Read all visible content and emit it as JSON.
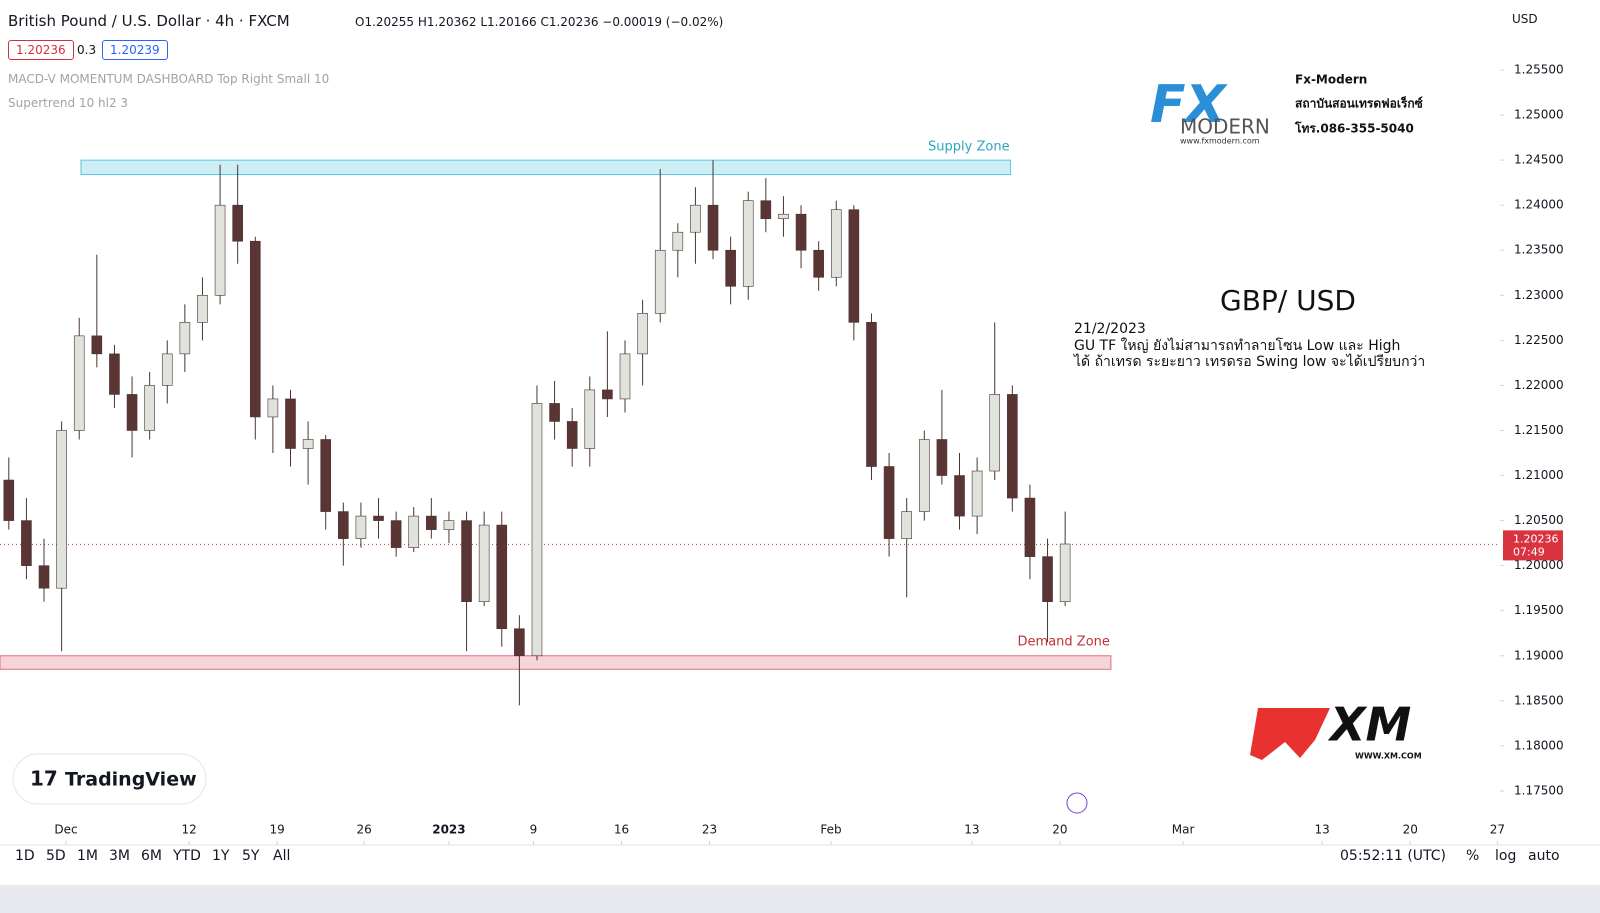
{
  "header": {
    "title": "British Pound / U.S. Dollar · 4h · FXCM",
    "ohlc": "O1.20255 H1.20362 L1.20166 C1.20236 −0.00019 (−0.02%)",
    "sell": "1.20236",
    "spread": "0.3",
    "buy": "1.20239",
    "indicators": [
      "MACD-V MOMENTUM DASHBOARD Top Right Small 10",
      "Supertrend 10 hl2 3"
    ],
    "currency": "USD"
  },
  "chart_data": {
    "type": "candlestick",
    "open": [
      1.2095,
      1.205,
      1.2,
      1.1975,
      1.215,
      1.2255,
      1.2235,
      1.219,
      1.215,
      1.22,
      1.2235,
      1.227,
      1.23,
      1.24,
      1.236,
      1.2165,
      1.2185,
      1.213,
      1.214,
      1.206,
      1.203,
      1.2055,
      1.205,
      1.202,
      1.2055,
      1.204,
      1.205,
      1.196,
      1.2045,
      1.193,
      1.19,
      1.218,
      1.216,
      1.213,
      1.2195,
      1.2185,
      1.2235,
      1.228,
      1.235,
      1.237,
      1.24,
      1.235,
      1.231,
      1.2405,
      1.2385,
      1.239,
      1.235,
      1.232,
      1.2395,
      1.227,
      1.211,
      1.203,
      1.206,
      1.214,
      1.21,
      1.2055,
      1.2105,
      1.219,
      1.2075,
      1.201,
      1.196
    ],
    "high": [
      1.212,
      1.2075,
      1.203,
      1.216,
      1.2275,
      1.2345,
      1.2245,
      1.221,
      1.2215,
      1.225,
      1.229,
      1.232,
      1.2445,
      1.2445,
      1.2365,
      1.22,
      1.2195,
      1.216,
      1.2145,
      1.207,
      1.207,
      1.2075,
      1.206,
      1.2065,
      1.2075,
      1.206,
      1.206,
      1.206,
      1.206,
      1.1945,
      1.22,
      1.2205,
      1.2175,
      1.221,
      1.226,
      1.225,
      1.2295,
      1.244,
      1.238,
      1.242,
      1.245,
      1.2365,
      1.2415,
      1.243,
      1.241,
      1.24,
      1.236,
      1.2405,
      1.24,
      1.228,
      1.2125,
      1.2075,
      1.215,
      1.2195,
      1.2125,
      1.212,
      1.227,
      1.22,
      1.209,
      1.203,
      1.206
    ],
    "low": [
      1.204,
      1.1985,
      1.196,
      1.1905,
      1.214,
      1.222,
      1.2175,
      1.212,
      1.214,
      1.218,
      1.2215,
      1.225,
      1.229,
      1.2335,
      1.214,
      1.2125,
      1.211,
      1.209,
      1.204,
      1.2,
      1.202,
      1.203,
      1.201,
      1.2015,
      1.203,
      1.2025,
      1.1905,
      1.1955,
      1.191,
      1.1845,
      1.1895,
      1.214,
      1.211,
      1.211,
      1.2165,
      1.217,
      1.22,
      1.227,
      1.232,
      1.2335,
      1.234,
      1.229,
      1.2295,
      1.237,
      1.2365,
      1.233,
      1.2305,
      1.231,
      1.225,
      1.2095,
      1.201,
      1.1965,
      1.205,
      1.209,
      1.204,
      1.2035,
      1.2095,
      1.206,
      1.1985,
      1.1915,
      1.1955
    ],
    "close": [
      1.205,
      1.2,
      1.1975,
      1.215,
      1.2255,
      1.2235,
      1.219,
      1.215,
      1.22,
      1.2235,
      1.227,
      1.23,
      1.24,
      1.236,
      1.2165,
      1.2185,
      1.213,
      1.214,
      1.206,
      1.203,
      1.2055,
      1.205,
      1.202,
      1.2055,
      1.204,
      1.205,
      1.196,
      1.2045,
      1.193,
      1.19,
      1.218,
      1.216,
      1.213,
      1.2195,
      1.2185,
      1.2235,
      1.228,
      1.235,
      1.237,
      1.24,
      1.235,
      1.231,
      1.2405,
      1.2385,
      1.239,
      1.235,
      1.232,
      1.2395,
      1.227,
      1.211,
      1.203,
      1.206,
      1.214,
      1.21,
      1.2055,
      1.2105,
      1.219,
      1.2075,
      1.201,
      1.196,
      1.2024
    ],
    "up_color": "#dfe3dc",
    "down_color": "#5b3434",
    "xlim": [
      0,
      85.2
    ],
    "xticks": [
      {
        "value": 3.75,
        "label": "Dec"
      },
      {
        "value": 10.74,
        "label": "12"
      },
      {
        "value": 15.74,
        "label": "19"
      },
      {
        "value": 20.68,
        "label": "26"
      },
      {
        "value": 25.5,
        "label": "2023"
      },
      {
        "value": 30.3,
        "label": "9"
      },
      {
        "value": 35.3,
        "label": "16"
      },
      {
        "value": 40.3,
        "label": "23"
      },
      {
        "value": 47.2,
        "label": "Feb"
      },
      {
        "value": 55.2,
        "label": "13"
      },
      {
        "value": 60.2,
        "label": "20"
      },
      {
        "value": 67.2,
        "label": "Mar"
      },
      {
        "value": 75.1,
        "label": "13"
      },
      {
        "value": 80.1,
        "label": "20"
      },
      {
        "value": 85.05,
        "label": "27"
      }
    ],
    "ylim": [
      1.169,
      1.26277
    ],
    "yticks": [
      {
        "value": 1.175,
        "label": "1.17500"
      },
      {
        "value": 1.18,
        "label": "1.18000"
      },
      {
        "value": 1.185,
        "label": "1.18500"
      },
      {
        "value": 1.19,
        "label": "1.19000"
      },
      {
        "value": 1.195,
        "label": "1.19500"
      },
      {
        "value": 1.2,
        "label": "1.20000"
      },
      {
        "value": 1.205,
        "label": "1.20500"
      },
      {
        "value": 1.21,
        "label": "1.21000"
      },
      {
        "value": 1.215,
        "label": "1.21500"
      },
      {
        "value": 1.22,
        "label": "1.22000"
      },
      {
        "value": 1.225,
        "label": "1.22500"
      },
      {
        "value": 1.23,
        "label": "1.23000"
      },
      {
        "value": 1.235,
        "label": "1.23500"
      },
      {
        "value": 1.24,
        "label": "1.24000"
      },
      {
        "value": 1.245,
        "label": "1.24500"
      },
      {
        "value": 1.25,
        "label": "1.25000"
      },
      {
        "value": 1.255,
        "label": "1.25500"
      }
    ],
    "last_price": {
      "value": 1.20236,
      "label": "1.20236"
    },
    "countdown": "07:49",
    "zones": [
      {
        "label": "Supply Zone",
        "range": [
          1.2434,
          1.245
        ],
        "x_range": [
          4.6,
          57.4
        ],
        "color": "#5bc8dc"
      },
      {
        "label": "Demand Zone",
        "range": [
          1.1885,
          1.19
        ],
        "x_range": [
          0,
          63.1
        ],
        "color": "#e0707a"
      }
    ],
    "annotation": {
      "heading": "GBP/ USD",
      "date": "21/2/2023",
      "lines": [
        "GU TF ใหญ่ ยังไม่สามารถทำลายโซน Low และ High",
        "ได้ ถ้าเทรด ระยะยาว เทรดรอ Swing low จะได้เปรียบกว่า"
      ]
    }
  },
  "logos": {
    "fx": "FX",
    "modern": "MODERN",
    "fx_url": "www.fxmodern.com",
    "brand": "Fx-Modern",
    "school": "สถาบันสอนเทรดฟอเร็กซ์",
    "phone": "โทร.086-355-5040",
    "xm": "XM",
    "xm_url": "WWW.XM.COM",
    "tradingview": "TradingView"
  },
  "toolbar": {
    "ranges": [
      "1D",
      "5D",
      "1M",
      "3M",
      "6M",
      "YTD",
      "1Y",
      "5Y",
      "All"
    ],
    "time": "05:52:11 (UTC)",
    "percent": "%",
    "log": "log",
    "auto": "auto"
  }
}
